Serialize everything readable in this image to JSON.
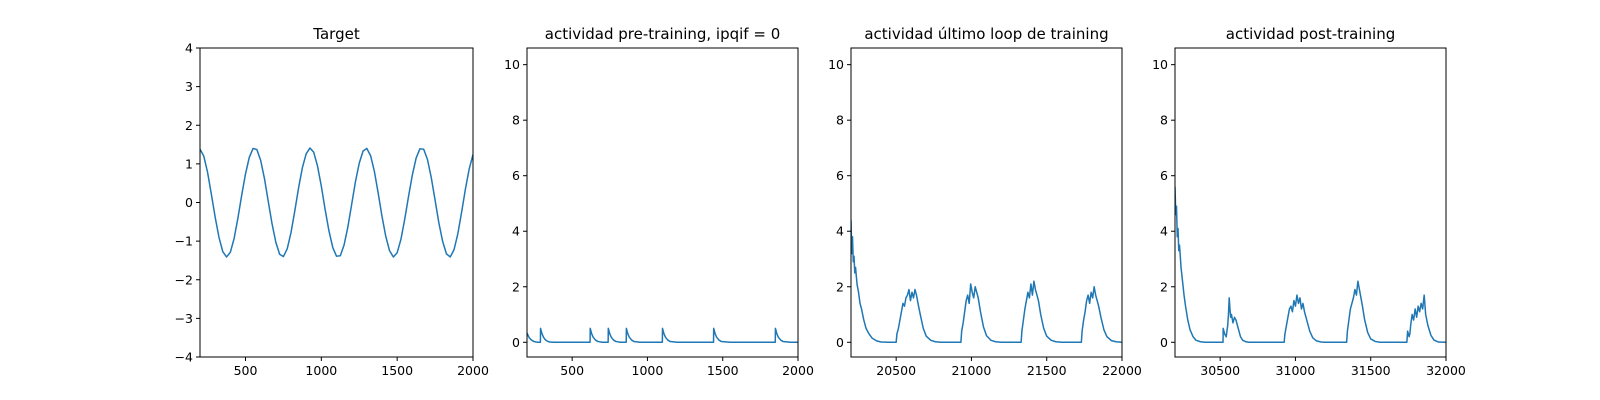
{
  "chart_data": [
    {
      "type": "line",
      "title": "Target",
      "xlim": [
        200,
        2000
      ],
      "ylim": [
        -4,
        4
      ],
      "xticks": [
        500,
        1000,
        1500,
        2000
      ],
      "yticks": [
        -4,
        -3,
        -2,
        -1,
        0,
        1,
        2,
        3,
        4
      ],
      "xtick_labels": [
        "500",
        "1000",
        "1500",
        "2000"
      ],
      "ytick_labels": [
        "−4",
        "−3",
        "−2",
        "−1",
        "0",
        "1",
        "2",
        "3",
        "4"
      ],
      "series": [
        {
          "color": "#1f77b4",
          "x": [
            200,
            225,
            250,
            275,
            300,
            325,
            350,
            375,
            400,
            425,
            450,
            475,
            500,
            525,
            550,
            575,
            600,
            625,
            650,
            675,
            700,
            725,
            750,
            775,
            800,
            825,
            850,
            875,
            900,
            925,
            950,
            975,
            1000,
            1025,
            1050,
            1075,
            1100,
            1125,
            1150,
            1175,
            1200,
            1225,
            1250,
            1275,
            1300,
            1325,
            1350,
            1375,
            1400,
            1425,
            1450,
            1475,
            1500,
            1525,
            1550,
            1575,
            1600,
            1625,
            1650,
            1675,
            1700,
            1725,
            1750,
            1775,
            1800,
            1825,
            1850,
            1875,
            1900,
            1925,
            1950,
            1975,
            2000
          ],
          "y": [
            1.38,
            1.2,
            0.78,
            0.21,
            -0.38,
            -0.9,
            -1.27,
            -1.41,
            -1.29,
            -0.93,
            -0.4,
            0.19,
            0.74,
            1.17,
            1.4,
            1.37,
            1.09,
            0.62,
            0.03,
            -0.55,
            -1.03,
            -1.34,
            -1.4,
            -1.2,
            -0.78,
            -0.22,
            0.38,
            0.9,
            1.26,
            1.41,
            1.3,
            0.94,
            0.42,
            -0.18,
            -0.73,
            -1.16,
            -1.39,
            -1.38,
            -1.1,
            -0.63,
            -0.05,
            0.54,
            1.02,
            1.33,
            1.4,
            1.21,
            0.8,
            0.24,
            -0.36,
            -0.88,
            -1.25,
            -1.41,
            -1.3,
            -0.95,
            -0.43,
            0.16,
            0.71,
            1.15,
            1.39,
            1.38,
            1.11,
            0.64,
            0.06,
            -0.53,
            -1.01,
            -1.33,
            -1.41,
            -1.22,
            -0.81,
            -0.25,
            0.35,
            0.87,
            1.24
          ]
        }
      ]
    },
    {
      "type": "line",
      "title": "actividad pre-training, ipqif = 0",
      "xlim": [
        200,
        2000
      ],
      "ylim": [
        -0.53,
        10.6
      ],
      "xticks": [
        500,
        1000,
        1500,
        2000
      ],
      "yticks": [
        0,
        2,
        4,
        6,
        8,
        10
      ],
      "xtick_labels": [
        "500",
        "1000",
        "1500",
        "2000"
      ],
      "ytick_labels": [
        "0",
        "2",
        "4",
        "6",
        "8",
        "10"
      ],
      "series": [
        {
          "color": "#1f77b4",
          "x": [
            200,
            215,
            230,
            245,
            260,
            275,
            289,
            290,
            300,
            310,
            320,
            335,
            350,
            380,
            450,
            520,
            590,
            619,
            620,
            630,
            640,
            655,
            670,
            700,
            739,
            740,
            750,
            760,
            775,
            790,
            820,
            859,
            860,
            870,
            880,
            895,
            910,
            950,
            1000,
            1050,
            1099,
            1100,
            1110,
            1120,
            1135,
            1150,
            1200,
            1300,
            1400,
            1439,
            1440,
            1450,
            1460,
            1475,
            1490,
            1550,
            1650,
            1750,
            1849,
            1850,
            1860,
            1870,
            1885,
            1900,
            1950,
            2000
          ],
          "y": [
            0.33,
            0.16,
            0.08,
            0.03,
            0.01,
            0.0,
            0.0,
            0.5,
            0.3,
            0.18,
            0.1,
            0.04,
            0.01,
            0.0,
            0.0,
            0.0,
            0.0,
            0.0,
            0.5,
            0.3,
            0.18,
            0.08,
            0.03,
            0.0,
            0.0,
            0.5,
            0.3,
            0.18,
            0.08,
            0.03,
            0.0,
            0.0,
            0.5,
            0.3,
            0.18,
            0.08,
            0.03,
            0.0,
            0.0,
            0.0,
            0.0,
            0.5,
            0.3,
            0.18,
            0.08,
            0.03,
            0.0,
            0.0,
            0.0,
            0.0,
            0.5,
            0.3,
            0.18,
            0.08,
            0.03,
            0.0,
            0.0,
            0.0,
            0.0,
            0.5,
            0.3,
            0.18,
            0.08,
            0.03,
            0.0,
            0.0
          ]
        }
      ]
    },
    {
      "type": "line",
      "title": "actividad último loop de training",
      "xlim": [
        20200,
        22000
      ],
      "ylim": [
        -0.53,
        10.6
      ],
      "xticks": [
        20500,
        21000,
        21500,
        22000
      ],
      "yticks": [
        0,
        2,
        4,
        6,
        8,
        10
      ],
      "xtick_labels": [
        "20500",
        "21000",
        "21500",
        "22000"
      ],
      "ytick_labels": [
        "0",
        "2",
        "4",
        "6",
        "8",
        "10"
      ],
      "series": [
        {
          "color": "#1f77b4",
          "x": [
            20200,
            20205,
            20210,
            20215,
            20220,
            20225,
            20230,
            20240,
            20250,
            20260,
            20270,
            20285,
            20300,
            20320,
            20340,
            20370,
            20400,
            20450,
            20500,
            20505,
            20515,
            20525,
            20535,
            20545,
            20555,
            20565,
            20575,
            20585,
            20595,
            20605,
            20615,
            20625,
            20635,
            20645,
            20660,
            20680,
            20700,
            20730,
            20760,
            20800,
            20850,
            20900,
            20930,
            20935,
            20945,
            20955,
            20965,
            20975,
            20985,
            20995,
            21005,
            21015,
            21025,
            21035,
            21045,
            21060,
            21080,
            21100,
            21130,
            21160,
            21200,
            21250,
            21300,
            21330,
            21335,
            21345,
            21355,
            21365,
            21375,
            21385,
            21395,
            21405,
            21415,
            21425,
            21435,
            21445,
            21460,
            21480,
            21500,
            21530,
            21560,
            21600,
            21650,
            21700,
            21730,
            21735,
            21745,
            21755,
            21765,
            21775,
            21785,
            21795,
            21805,
            21815,
            21825,
            21835,
            21845,
            21860,
            21880,
            21900,
            21930,
            21960,
            22000
          ],
          "y": [
            4.4,
            3.2,
            3.8,
            2.9,
            3.1,
            2.5,
            2.7,
            2.1,
            1.8,
            1.4,
            1.2,
            0.8,
            0.5,
            0.3,
            0.15,
            0.05,
            0.01,
            0.0,
            0.0,
            0.3,
            0.5,
            0.8,
            1.1,
            1.4,
            1.3,
            1.6,
            1.7,
            1.9,
            1.5,
            1.8,
            1.6,
            1.9,
            1.7,
            1.4,
            1.0,
            0.5,
            0.22,
            0.07,
            0.02,
            0.0,
            0.0,
            0.0,
            0.0,
            0.4,
            0.7,
            1.1,
            1.5,
            1.7,
            1.4,
            2.1,
            1.8,
            1.6,
            2.0,
            1.8,
            1.6,
            1.1,
            0.55,
            0.24,
            0.07,
            0.02,
            0.0,
            0.0,
            0.0,
            0.0,
            0.4,
            0.8,
            1.2,
            1.5,
            1.8,
            1.6,
            2.1,
            1.7,
            2.2,
            1.9,
            1.7,
            1.5,
            1.0,
            0.5,
            0.22,
            0.07,
            0.02,
            0.0,
            0.0,
            0.0,
            0.0,
            0.4,
            0.8,
            1.1,
            1.5,
            1.7,
            1.4,
            1.8,
            1.6,
            2.0,
            1.7,
            1.5,
            1.3,
            0.9,
            0.45,
            0.2,
            0.06,
            0.02,
            0.0
          ]
        }
      ]
    },
    {
      "type": "line",
      "title": "actividad post-training",
      "xlim": [
        30200,
        32000
      ],
      "ylim": [
        -0.53,
        10.6
      ],
      "xticks": [
        30500,
        31000,
        31500,
        32000
      ],
      "yticks": [
        0,
        2,
        4,
        6,
        8,
        10
      ],
      "xtick_labels": [
        "30500",
        "31000",
        "31500",
        "32000"
      ],
      "ytick_labels": [
        "0",
        "2",
        "4",
        "6",
        "8",
        "10"
      ],
      "series": [
        {
          "color": "#1f77b4",
          "x": [
            30200,
            30205,
            30210,
            30215,
            30220,
            30225,
            30230,
            30240,
            30250,
            30260,
            30270,
            30285,
            30300,
            30320,
            30340,
            30370,
            30400,
            30450,
            30500,
            30519,
            30520,
            30530,
            30540,
            30550,
            30555,
            30560,
            30565,
            30570,
            30575,
            30585,
            30595,
            30605,
            30615,
            30625,
            30635,
            30650,
            30670,
            30690,
            30720,
            30760,
            30800,
            30850,
            30900,
            30925,
            30930,
            30940,
            30950,
            30960,
            30970,
            30980,
            30990,
            31000,
            31010,
            31020,
            31030,
            31040,
            31050,
            31060,
            31075,
            31095,
            31115,
            31140,
            31170,
            31200,
            31250,
            31300,
            31340,
            31345,
            31355,
            31365,
            31375,
            31385,
            31395,
            31405,
            31415,
            31425,
            31435,
            31445,
            31460,
            31480,
            31500,
            31530,
            31560,
            31600,
            31650,
            31700,
            31740,
            31745,
            31755,
            31760,
            31765,
            31775,
            31785,
            31795,
            31805,
            31815,
            31825,
            31835,
            31845,
            31855,
            31865,
            31880,
            31900,
            31920,
            31950,
            32000
          ],
          "y": [
            5.6,
            4.6,
            4.9,
            3.8,
            4.1,
            3.3,
            3.5,
            2.7,
            2.2,
            1.7,
            1.3,
            0.8,
            0.45,
            0.2,
            0.07,
            0.02,
            0.0,
            0.0,
            0.0,
            0.0,
            0.5,
            0.3,
            0.2,
            0.6,
            1.0,
            1.6,
            1.2,
            0.9,
            1.0,
            0.7,
            0.9,
            0.8,
            0.6,
            0.4,
            0.2,
            0.07,
            0.02,
            0.0,
            0.0,
            0.0,
            0.0,
            0.0,
            0.0,
            0.0,
            0.3,
            0.6,
            0.9,
            1.2,
            1.3,
            1.1,
            1.5,
            1.3,
            1.7,
            1.4,
            1.6,
            1.2,
            1.4,
            1.1,
            0.8,
            0.4,
            0.16,
            0.05,
            0.01,
            0.0,
            0.0,
            0.0,
            0.0,
            0.4,
            0.8,
            1.2,
            1.4,
            1.6,
            1.9,
            1.7,
            2.2,
            1.9,
            1.6,
            1.3,
            0.8,
            0.35,
            0.12,
            0.03,
            0.0,
            0.0,
            0.0,
            0.0,
            0.0,
            0.4,
            0.2,
            0.3,
            0.6,
            1.0,
            0.8,
            1.2,
            0.9,
            1.3,
            1.1,
            1.4,
            1.2,
            1.7,
            1.0,
            0.6,
            0.25,
            0.08,
            0.01,
            0.0
          ]
        }
      ]
    }
  ]
}
